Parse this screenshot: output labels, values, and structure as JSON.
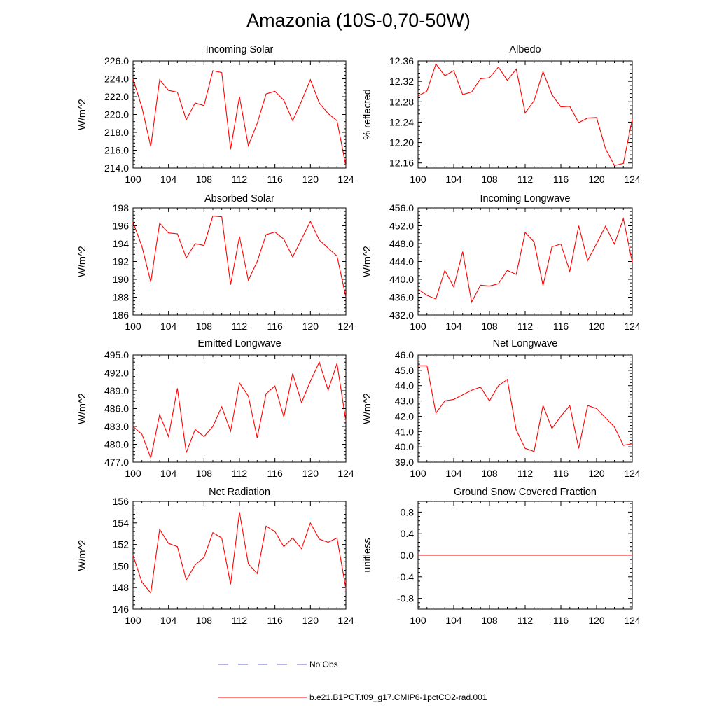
{
  "title": "Amazonia (10S-0,70-50W)",
  "colors": {
    "model": "#ff0000",
    "obs": "#6666cc",
    "axis": "#000000"
  },
  "legend": {
    "obs_label": "No Obs",
    "model_label": "b.e21.B1PCT.f09_g17.CMIP6-1pctCO2-rad.001"
  },
  "chart_data": [
    {
      "type": "line",
      "title": "Incoming Solar",
      "ylabel": "W/m^2",
      "xlim": [
        100,
        124
      ],
      "ylim": [
        214,
        226
      ],
      "xticks": [
        "100",
        "104",
        "108",
        "112",
        "116",
        "120",
        "124"
      ],
      "yticks": [
        "214.0",
        "216.0",
        "218.0",
        "220.0",
        "222.0",
        "224.0",
        "226.0"
      ],
      "series": [
        {
          "values": [
            224.0,
            220.8,
            216.4,
            223.9,
            222.7,
            222.5,
            219.4,
            221.3,
            221.0,
            224.9,
            224.7,
            216.1,
            222.0,
            216.5,
            219.0,
            222.3,
            222.6,
            221.6,
            219.3,
            221.5,
            223.9,
            221.3,
            220.1,
            219.3,
            214.2
          ]
        }
      ]
    },
    {
      "type": "line",
      "title": "Albedo",
      "ylabel": "% reflected",
      "xlim": [
        100,
        124
      ],
      "ylim": [
        12.15,
        12.36
      ],
      "xticks": [
        "100",
        "104",
        "108",
        "112",
        "116",
        "120",
        "124"
      ],
      "yticks": [
        "12.16",
        "12.20",
        "12.24",
        "12.28",
        "12.32",
        "12.36"
      ],
      "series": [
        {
          "values": [
            12.291,
            12.301,
            12.354,
            12.331,
            12.341,
            12.294,
            12.299,
            12.325,
            12.327,
            12.348,
            12.322,
            12.344,
            12.258,
            12.282,
            12.339,
            12.294,
            12.27,
            12.271,
            12.239,
            12.248,
            12.249,
            12.188,
            12.155,
            12.159,
            12.246
          ]
        }
      ]
    },
    {
      "type": "line",
      "title": "Absorbed Solar",
      "ylabel": "W/m^2",
      "xlim": [
        100,
        124
      ],
      "ylim": [
        186,
        198
      ],
      "xticks": [
        "100",
        "104",
        "108",
        "112",
        "116",
        "120",
        "124"
      ],
      "yticks": [
        "186",
        "188",
        "190",
        "192",
        "194",
        "196",
        "198"
      ],
      "series": [
        {
          "values": [
            196.4,
            193.7,
            189.7,
            196.3,
            195.2,
            195.1,
            192.4,
            194.0,
            193.8,
            197.1,
            197.0,
            189.4,
            194.8,
            189.9,
            192.0,
            195.0,
            195.3,
            194.5,
            192.5,
            194.5,
            196.5,
            194.4,
            193.5,
            192.6,
            188.0
          ]
        }
      ]
    },
    {
      "type": "line",
      "title": "Incoming Longwave",
      "ylabel": "W/m^2",
      "xlim": [
        100,
        124
      ],
      "ylim": [
        432,
        456
      ],
      "xticks": [
        "100",
        "104",
        "108",
        "112",
        "116",
        "120",
        "124"
      ],
      "yticks": [
        "432.0",
        "436.0",
        "440.0",
        "444.0",
        "448.0",
        "452.0",
        "456.0"
      ],
      "series": [
        {
          "values": [
            437.8,
            436.4,
            435.6,
            442.0,
            438.3,
            446.2,
            434.9,
            438.7,
            438.5,
            439.0,
            442.0,
            441.1,
            450.5,
            448.4,
            438.6,
            447.3,
            447.9,
            441.8,
            452.0,
            444.2,
            448.0,
            451.9,
            447.9,
            453.6,
            443.8
          ]
        }
      ]
    },
    {
      "type": "line",
      "title": "Emitted Longwave",
      "ylabel": "W/m^2",
      "xlim": [
        100,
        124
      ],
      "ylim": [
        477,
        495
      ],
      "xticks": [
        "100",
        "104",
        "108",
        "112",
        "116",
        "120",
        "124"
      ],
      "yticks": [
        "477.0",
        "480.0",
        "483.0",
        "486.0",
        "489.0",
        "492.0",
        "495.0"
      ],
      "series": [
        {
          "values": [
            483.0,
            481.7,
            477.7,
            485.0,
            481.3,
            489.4,
            478.6,
            482.5,
            481.3,
            483.0,
            486.3,
            482.2,
            490.3,
            488.1,
            481.1,
            488.5,
            489.8,
            484.6,
            491.9,
            487.0,
            490.6,
            493.8,
            489.1,
            493.6,
            483.9
          ]
        }
      ]
    },
    {
      "type": "line",
      "title": "Net Longwave",
      "ylabel": "W/m^2",
      "xlim": [
        100,
        124
      ],
      "ylim": [
        39,
        46
      ],
      "xticks": [
        "100",
        "104",
        "108",
        "112",
        "116",
        "120",
        "124"
      ],
      "yticks": [
        "39.0",
        "40.0",
        "41.0",
        "42.0",
        "43.0",
        "44.0",
        "45.0",
        "46.0"
      ],
      "series": [
        {
          "values": [
            45.3,
            45.3,
            42.2,
            43.0,
            43.1,
            43.4,
            43.7,
            43.9,
            43.0,
            44.0,
            44.4,
            41.1,
            39.9,
            39.7,
            42.7,
            41.2,
            42.0,
            42.7,
            39.9,
            42.7,
            42.5,
            41.9,
            41.3,
            40.1,
            40.2
          ]
        }
      ]
    },
    {
      "type": "line",
      "title": "Net Radiation",
      "ylabel": "W/m^2",
      "xlim": [
        100,
        124
      ],
      "ylim": [
        146,
        156
      ],
      "xticks": [
        "100",
        "104",
        "108",
        "112",
        "116",
        "120",
        "124"
      ],
      "yticks": [
        "146",
        "148",
        "150",
        "152",
        "154",
        "156"
      ],
      "series": [
        {
          "values": [
            151.0,
            148.5,
            147.5,
            153.4,
            152.1,
            151.8,
            148.7,
            150.1,
            150.8,
            153.1,
            152.6,
            148.3,
            155.0,
            150.2,
            149.3,
            153.7,
            153.2,
            151.8,
            152.6,
            151.6,
            154.0,
            152.5,
            152.2,
            152.6,
            147.9
          ]
        }
      ]
    },
    {
      "type": "line",
      "title": "Ground Snow Covered Fraction",
      "ylabel": "unitless",
      "xlim": [
        100,
        124
      ],
      "ylim": [
        -1.0,
        1.0
      ],
      "xticks": [
        "100",
        "104",
        "108",
        "112",
        "116",
        "120",
        "124"
      ],
      "yticks": [
        "-0.8",
        "-0.4",
        "0.0",
        "0.4",
        "0.8"
      ],
      "series": [
        {
          "values": [
            0,
            0,
            0,
            0,
            0,
            0,
            0,
            0,
            0,
            0,
            0,
            0,
            0,
            0,
            0,
            0,
            0,
            0,
            0,
            0,
            0,
            0,
            0,
            0,
            0
          ]
        }
      ]
    }
  ]
}
